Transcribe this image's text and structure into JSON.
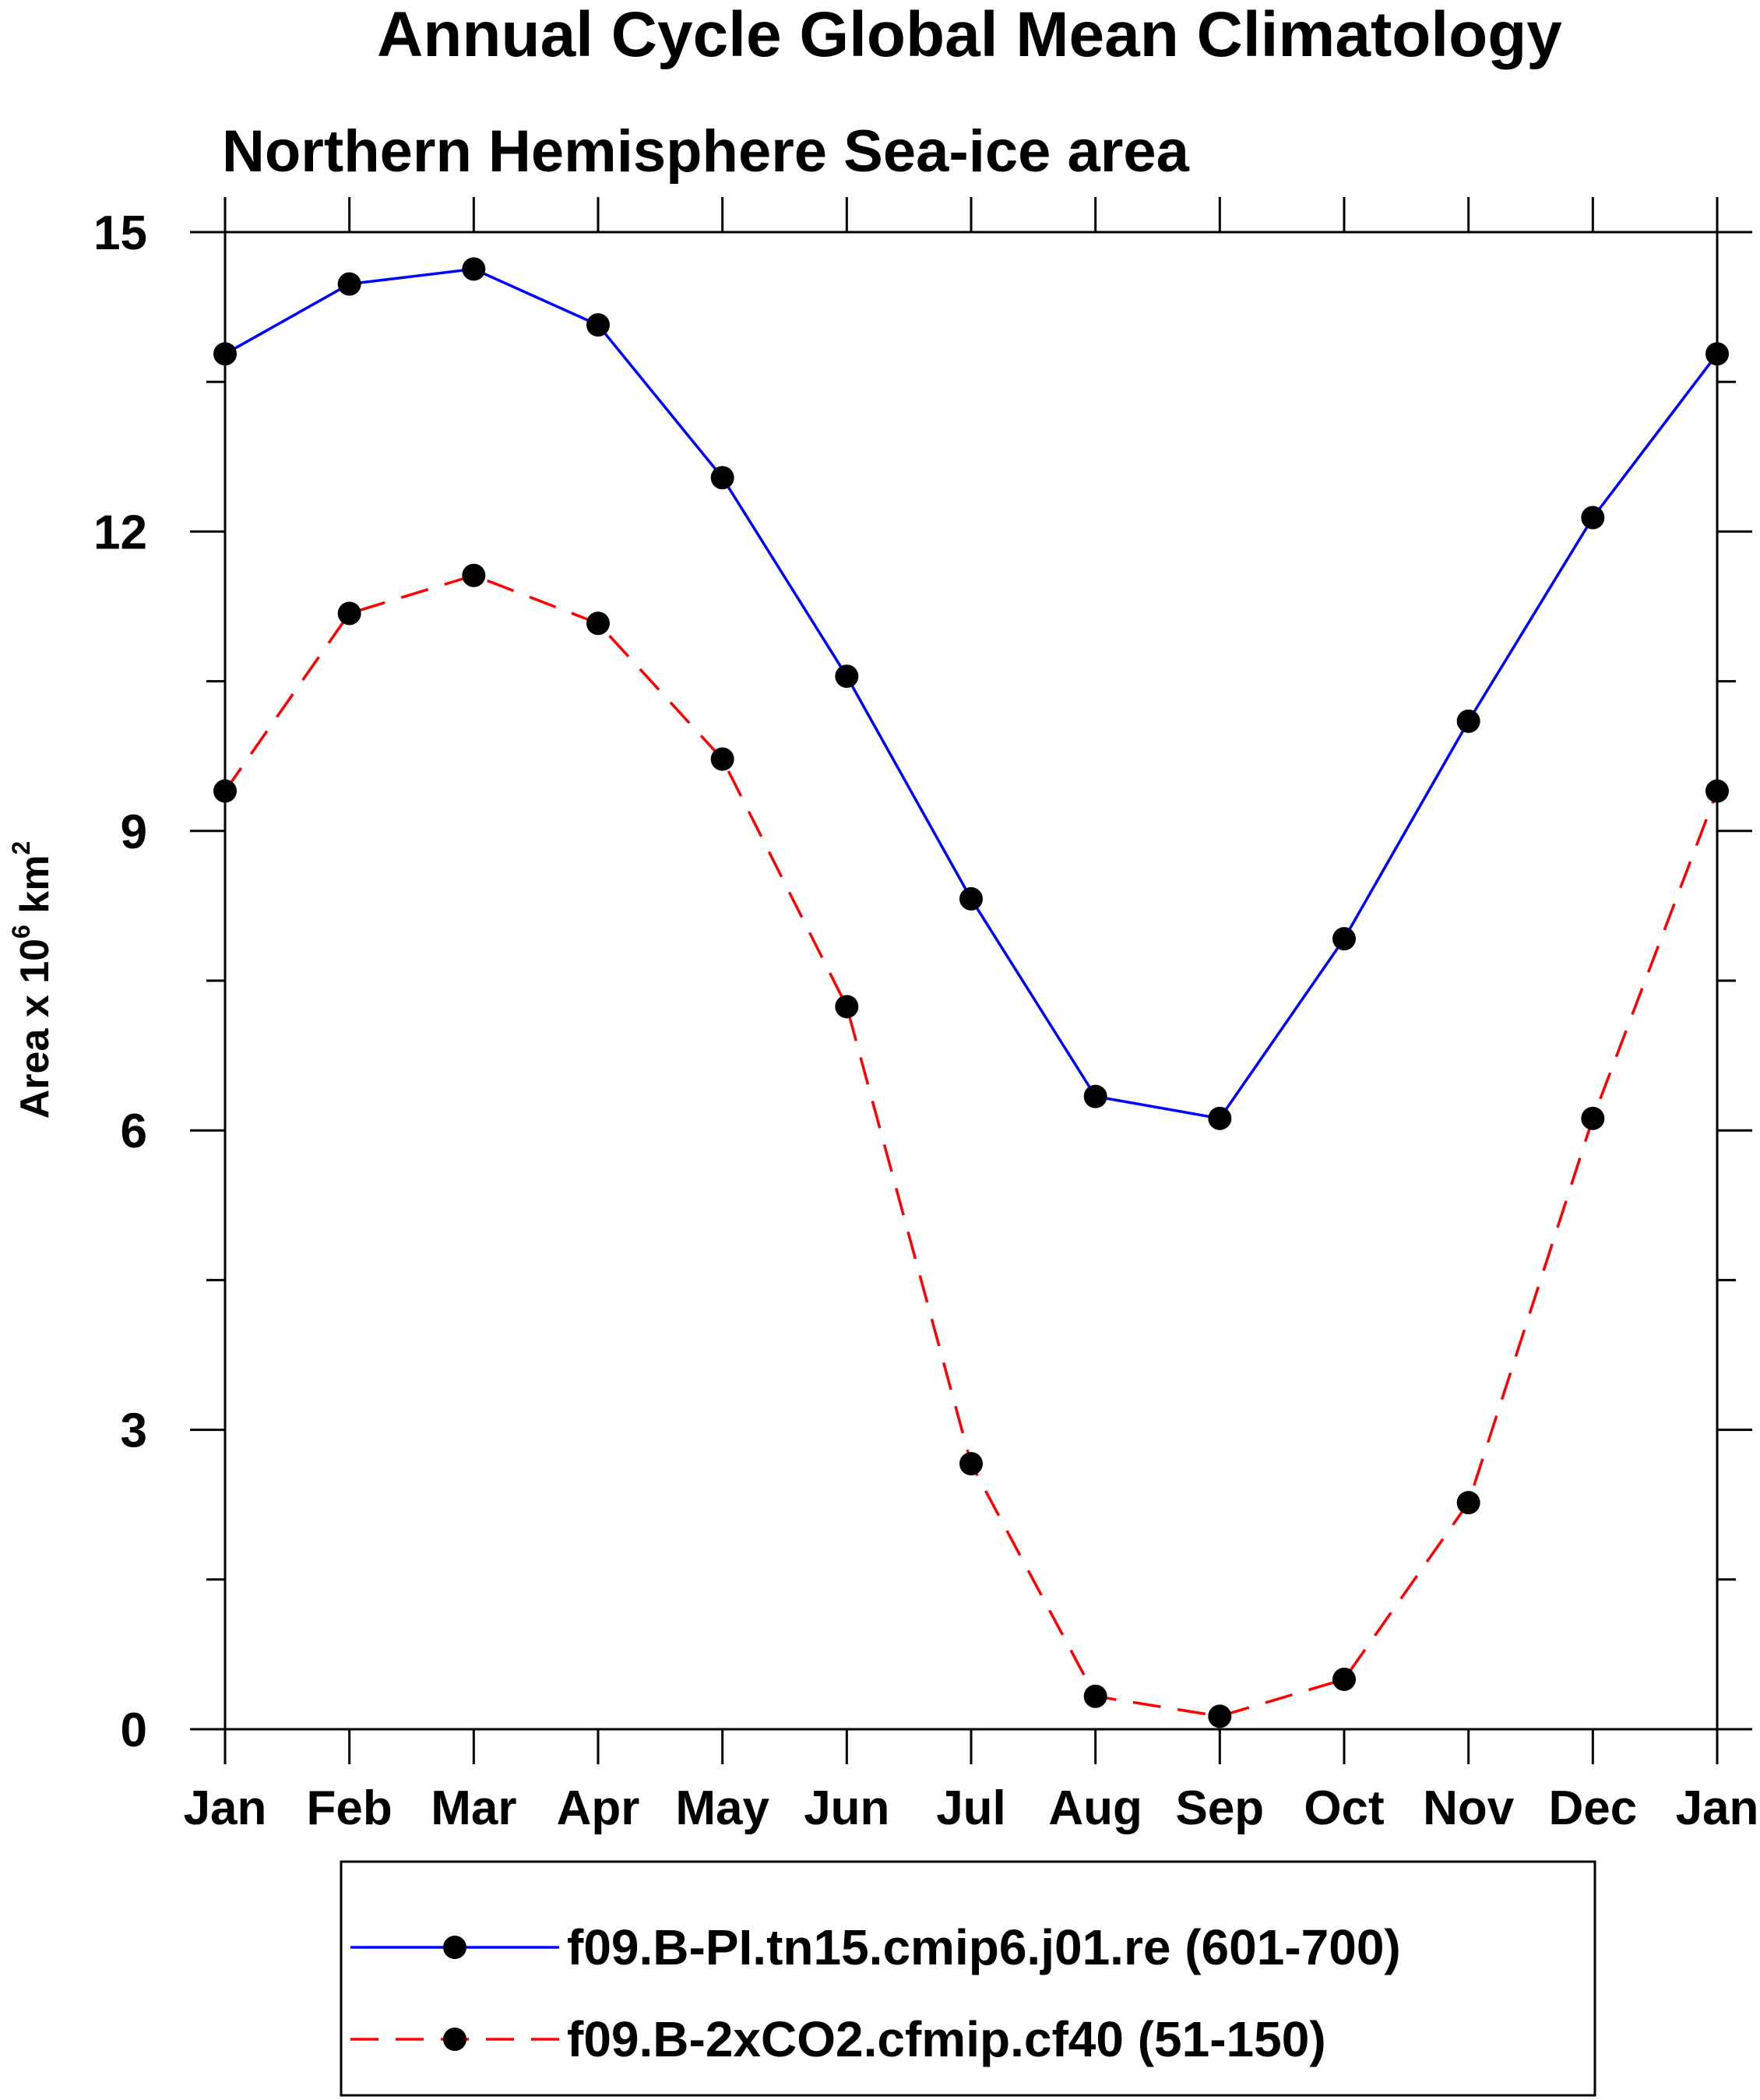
{
  "chart_data": {
    "type": "line",
    "title": "Annual Cycle Global Mean Climatology",
    "subtitle": "Northern Hemisphere Sea-ice area",
    "ylabel_prefix": "Area x 10",
    "ylabel_exp1": "6",
    "ylabel_unit": " km",
    "ylabel_exp2": "2",
    "xlabel": "",
    "categories": [
      "Jan",
      "Feb",
      "Mar",
      "Apr",
      "May",
      "Jun",
      "Jul",
      "Aug",
      "Sep",
      "Oct",
      "Nov",
      "Dec",
      "Jan"
    ],
    "ylim": [
      0,
      15
    ],
    "yticks": [
      0,
      3,
      6,
      9,
      12,
      15
    ],
    "yticks_minor": [
      1.5,
      4.5,
      7.5,
      10.5,
      13.5
    ],
    "grid": false,
    "legend_position": "bottom",
    "series": [
      {
        "name": "f09.B-PI.tn15.cmip6.j01.re (601-700)",
        "color": "#0000ff",
        "dash": "solid",
        "values": [
          13.78,
          14.48,
          14.63,
          14.07,
          12.54,
          10.55,
          8.32,
          6.34,
          6.12,
          7.92,
          10.1,
          12.14,
          13.78
        ]
      },
      {
        "name": "f09.B-2xCO2.cfmip.cf40 (51-150)",
        "color": "#ff0000",
        "dash": "dashed",
        "values": [
          9.4,
          11.18,
          11.56,
          11.08,
          9.72,
          7.24,
          2.66,
          0.33,
          0.13,
          0.5,
          2.27,
          6.12,
          9.4
        ]
      }
    ]
  }
}
